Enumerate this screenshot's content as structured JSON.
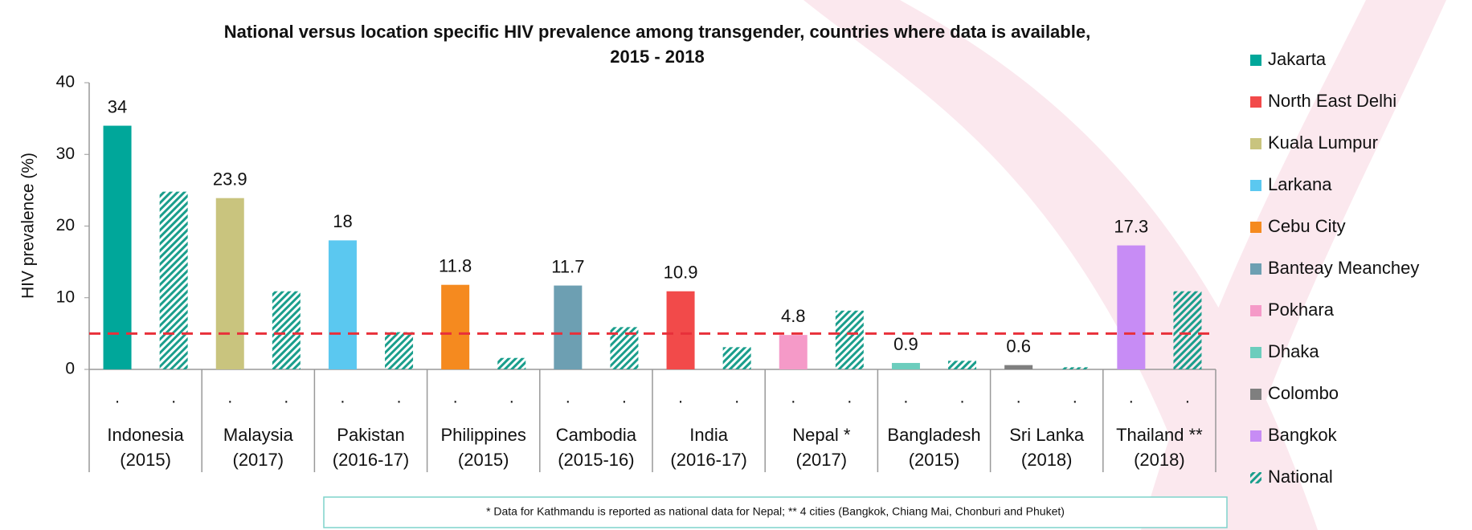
{
  "chart_data": {
    "type": "bar",
    "title": "National versus location specific HIV prevalence among transgender, countries where data is available,",
    "subtitle": "2015 - 2018",
    "y_label": "HIV prevalence (%)",
    "categories": [
      [
        "Indonesia",
        "(2015)"
      ],
      [
        "Malaysia",
        "(2017)"
      ],
      [
        "Pakistan",
        "(2016-17)"
      ],
      [
        "Philippines",
        "(2015)"
      ],
      [
        "Cambodia",
        "(2015-16)"
      ],
      [
        "India",
        "(2016-17)"
      ],
      [
        "Nepal *",
        "(2017)"
      ],
      [
        "Bangladesh",
        "(2015)"
      ],
      [
        "Sri Lanka",
        "(2018)"
      ],
      [
        "Thailand **",
        "(2018)"
      ]
    ],
    "bar_labels": [
      ".",
      "."
    ],
    "ylim": [
      0,
      40
    ],
    "yticks": [
      0,
      10,
      20,
      30,
      40
    ],
    "grid": false,
    "reference_line": {
      "value": 5,
      "color": "#e8303a"
    },
    "series": [
      {
        "name": "Jakarta",
        "color": "#00a79a",
        "values": [
          34,
          null,
          null,
          null,
          null,
          null,
          null,
          null,
          null,
          null
        ]
      },
      {
        "name": "North East Delhi",
        "color": "#f24a4a",
        "values": [
          null,
          null,
          null,
          null,
          null,
          10.9,
          null,
          null,
          null,
          null
        ]
      },
      {
        "name": "Kuala Lumpur",
        "color": "#c9c47e",
        "values": [
          null,
          23.9,
          null,
          null,
          null,
          null,
          null,
          null,
          null,
          null
        ]
      },
      {
        "name": "Larkana",
        "color": "#5bc8f0",
        "values": [
          null,
          null,
          18,
          null,
          null,
          null,
          null,
          null,
          null,
          null
        ]
      },
      {
        "name": "Cebu City",
        "color": "#f58a1f",
        "values": [
          null,
          null,
          null,
          11.8,
          null,
          null,
          null,
          null,
          null,
          null
        ]
      },
      {
        "name": "Banteay Meanchey",
        "color": "#6d9fb2",
        "values": [
          null,
          null,
          null,
          null,
          11.7,
          null,
          null,
          null,
          null,
          null
        ]
      },
      {
        "name": "Pokhara",
        "color": "#f59ac8",
        "values": [
          null,
          null,
          null,
          null,
          null,
          null,
          4.8,
          null,
          null,
          null
        ]
      },
      {
        "name": "Dhaka",
        "color": "#6ccdbd",
        "values": [
          null,
          null,
          null,
          null,
          null,
          null,
          null,
          0.9,
          null,
          null
        ]
      },
      {
        "name": "Colombo",
        "color": "#7f7f7f",
        "values": [
          null,
          null,
          null,
          null,
          null,
          null,
          null,
          null,
          0.6,
          null
        ]
      },
      {
        "name": "Bangkok",
        "color": "#c78cf5",
        "values": [
          null,
          null,
          null,
          null,
          null,
          null,
          null,
          null,
          null,
          17.3
        ]
      },
      {
        "name": "National",
        "color": "#1a9e8c",
        "hatch": true,
        "values": [
          24.8,
          10.9,
          5.2,
          1.6,
          5.9,
          3.1,
          8.2,
          1.2,
          0.3,
          10.9
        ]
      }
    ],
    "footnote": "* Data for Kathmandu is reported as national data for Nepal; ** 4 cities (Bangkok, Chiang Mai, Chonburi and Phuket)"
  }
}
